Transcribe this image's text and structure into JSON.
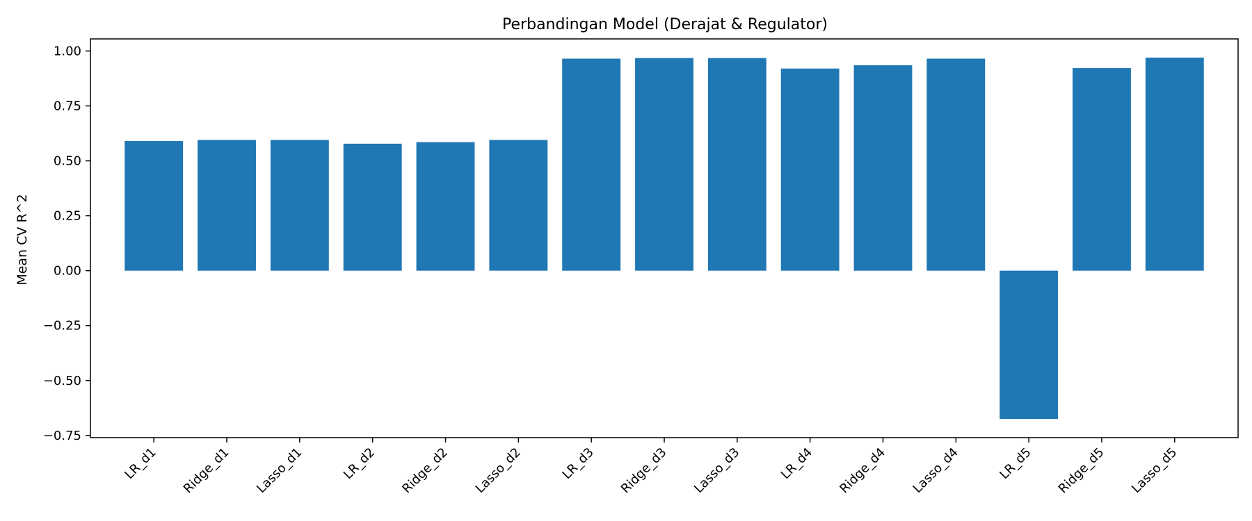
{
  "chart_data": {
    "type": "bar",
    "title": "Perbandingan Model (Derajat & Regulator)",
    "xlabel": "",
    "ylabel": "Mean CV R^2",
    "categories": [
      "LR_d1",
      "Ridge_d1",
      "Lasso_d1",
      "LR_d2",
      "Ridge_d2",
      "Lasso_d2",
      "LR_d3",
      "Ridge_d3",
      "Lasso_d3",
      "LR_d4",
      "Ridge_d4",
      "Lasso_d4",
      "LR_d5",
      "Ridge_d5",
      "Lasso_d5"
    ],
    "values": [
      0.59,
      0.595,
      0.595,
      0.578,
      0.585,
      0.595,
      0.965,
      0.968,
      0.968,
      0.92,
      0.935,
      0.965,
      -0.675,
      0.922,
      0.97
    ],
    "ylim": [
      -0.76,
      1.055
    ],
    "yticks": [
      1.0,
      0.75,
      0.5,
      0.25,
      0.0,
      -0.25,
      -0.5,
      -0.75
    ],
    "ytick_labels": [
      "1.00",
      "0.75",
      "0.50",
      "0.25",
      "0.00",
      "−0.25",
      "−0.50",
      "−0.75"
    ],
    "bar_color": "#1f77b4",
    "grid": false,
    "legend": "none"
  }
}
